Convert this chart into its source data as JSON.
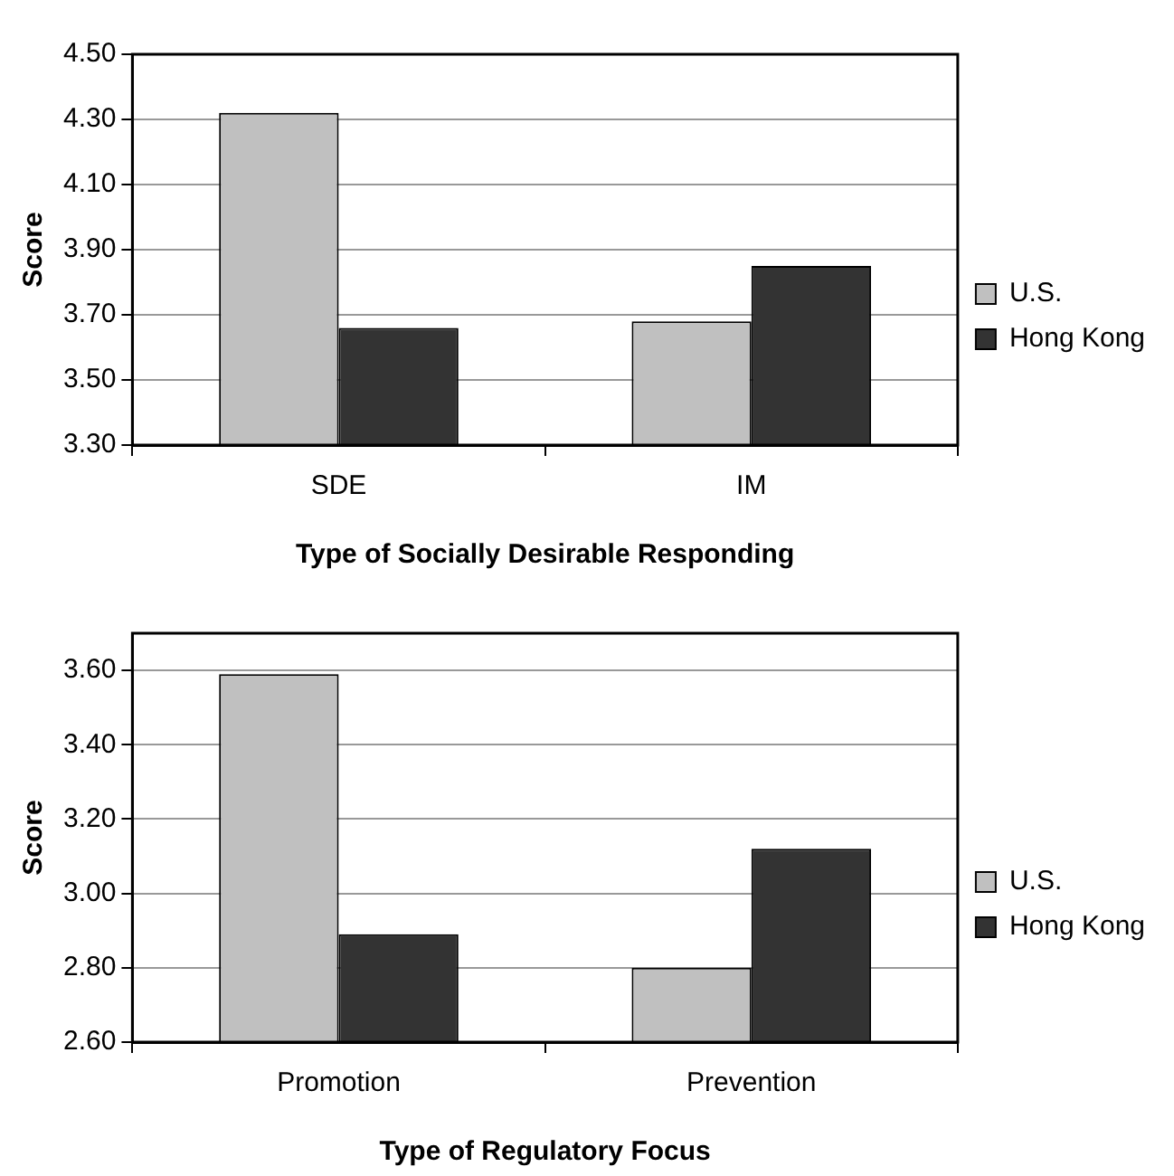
{
  "chart_data": [
    {
      "type": "bar",
      "xlabel": "Type of Socially Desirable Responding",
      "ylabel": "Score",
      "categories": [
        "SDE",
        "IM"
      ],
      "series": [
        {
          "name": "U.S.",
          "color": "#c0c0c0",
          "values": [
            4.32,
            3.68
          ]
        },
        {
          "name": "Hong Kong",
          "color": "#333333",
          "values": [
            3.66,
            3.85
          ]
        }
      ],
      "ylim": [
        3.3,
        4.5
      ],
      "yticks": [
        {
          "value": 3.3,
          "label": "3.30"
        },
        {
          "value": 3.5,
          "label": "3.50"
        },
        {
          "value": 3.7,
          "label": "3.70"
        },
        {
          "value": 3.9,
          "label": "3.90"
        },
        {
          "value": 4.1,
          "label": "4.10"
        },
        {
          "value": 4.3,
          "label": "4.30"
        },
        {
          "value": 4.5,
          "label": "4.50"
        }
      ],
      "grid": "y",
      "legend": "right"
    },
    {
      "type": "bar",
      "xlabel": "Type of Regulatory Focus",
      "ylabel": "Score",
      "categories": [
        "Promotion",
        "Prevention"
      ],
      "series": [
        {
          "name": "U.S.",
          "color": "#c0c0c0",
          "values": [
            3.59,
            2.8
          ]
        },
        {
          "name": "Hong Kong",
          "color": "#333333",
          "values": [
            2.89,
            3.12
          ]
        }
      ],
      "ylim": [
        2.6,
        3.7
      ],
      "yticks": [
        {
          "value": 2.6,
          "label": "2.60"
        },
        {
          "value": 2.8,
          "label": "2.80"
        },
        {
          "value": 3.0,
          "label": "3.00"
        },
        {
          "value": 3.2,
          "label": "3.20"
        },
        {
          "value": 3.4,
          "label": "3.40"
        },
        {
          "value": 3.6,
          "label": "3.60"
        }
      ],
      "grid": "y",
      "legend": "right"
    }
  ]
}
